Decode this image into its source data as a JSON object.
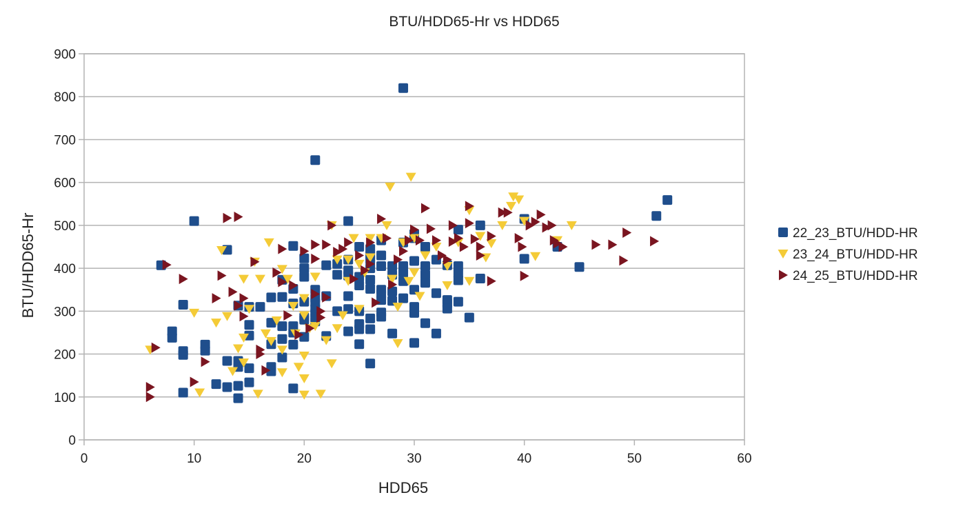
{
  "chart_data": {
    "type": "scatter",
    "title": "BTU/HDD65-Hr vs HDD65",
    "xlabel": "HDD65",
    "ylabel": "BTU/HDD65-Hr",
    "xlim": [
      0,
      60
    ],
    "ylim": [
      0,
      900
    ],
    "x_ticks": [
      "0",
      "10",
      "20",
      "30",
      "40",
      "50",
      "60"
    ],
    "y_ticks": [
      "0",
      "100",
      "200",
      "300",
      "400",
      "500",
      "600",
      "700",
      "800",
      "900"
    ],
    "grid": "horizontal",
    "legend_position": "right",
    "series": [
      {
        "name": "22_23_BTU/HDD-HR",
        "marker": "square",
        "color": "#1f4e8c",
        "points": [
          [
            7,
            407
          ],
          [
            8,
            253
          ],
          [
            8,
            238
          ],
          [
            9,
            315
          ],
          [
            9,
            207
          ],
          [
            9,
            198
          ],
          [
            9,
            110
          ],
          [
            10,
            510
          ],
          [
            11,
            222
          ],
          [
            11,
            208
          ],
          [
            12,
            130
          ],
          [
            13,
            443
          ],
          [
            13,
            184
          ],
          [
            13,
            123
          ],
          [
            14,
            313
          ],
          [
            14,
            184
          ],
          [
            14,
            170
          ],
          [
            14,
            126
          ],
          [
            14,
            97
          ],
          [
            15,
            310
          ],
          [
            15,
            268
          ],
          [
            15,
            243
          ],
          [
            15,
            167
          ],
          [
            15,
            134
          ],
          [
            16,
            310
          ],
          [
            17,
            332
          ],
          [
            17,
            273
          ],
          [
            17,
            223
          ],
          [
            17,
            170
          ],
          [
            17,
            160
          ],
          [
            18,
            373
          ],
          [
            18,
            333
          ],
          [
            18,
            265
          ],
          [
            18,
            235
          ],
          [
            18,
            192
          ],
          [
            19,
            452
          ],
          [
            19,
            352
          ],
          [
            19,
            318
          ],
          [
            19,
            265
          ],
          [
            19,
            250
          ],
          [
            19,
            222
          ],
          [
            19,
            120
          ],
          [
            20,
            423
          ],
          [
            20,
            400
          ],
          [
            20,
            380
          ],
          [
            20,
            322
          ],
          [
            20,
            285
          ],
          [
            20,
            280
          ],
          [
            20,
            240
          ],
          [
            21,
            652
          ],
          [
            21,
            350
          ],
          [
            21,
            330
          ],
          [
            21,
            320
          ],
          [
            21,
            306
          ],
          [
            21,
            295
          ],
          [
            21,
            285
          ],
          [
            21,
            276
          ],
          [
            22,
            407
          ],
          [
            22,
            335
          ],
          [
            22,
            242
          ],
          [
            23,
            410
          ],
          [
            23,
            385
          ],
          [
            23,
            300
          ],
          [
            24,
            510
          ],
          [
            24,
            420
          ],
          [
            24,
            395
          ],
          [
            24,
            383
          ],
          [
            24,
            335
          ],
          [
            24,
            305
          ],
          [
            24,
            253
          ],
          [
            25,
            450
          ],
          [
            25,
            380
          ],
          [
            25,
            360
          ],
          [
            25,
            300
          ],
          [
            25,
            270
          ],
          [
            25,
            258
          ],
          [
            25,
            223
          ],
          [
            26,
            445
          ],
          [
            26,
            430
          ],
          [
            26,
            420
          ],
          [
            26,
            400
          ],
          [
            26,
            373
          ],
          [
            26,
            352
          ],
          [
            26,
            283
          ],
          [
            26,
            258
          ],
          [
            26,
            178
          ],
          [
            27,
            465
          ],
          [
            27,
            430
          ],
          [
            27,
            405
          ],
          [
            27,
            350
          ],
          [
            27,
            340
          ],
          [
            27,
            326
          ],
          [
            27,
            297
          ],
          [
            27,
            287
          ],
          [
            28,
            405
          ],
          [
            28,
            385
          ],
          [
            28,
            346
          ],
          [
            28,
            324
          ],
          [
            28,
            248
          ],
          [
            29,
            820
          ],
          [
            29,
            460
          ],
          [
            29,
            405
          ],
          [
            29,
            390
          ],
          [
            29,
            370
          ],
          [
            29,
            330
          ],
          [
            30,
            480
          ],
          [
            30,
            470
          ],
          [
            30,
            417
          ],
          [
            30,
            350
          ],
          [
            30,
            310
          ],
          [
            30,
            296
          ],
          [
            30,
            226
          ],
          [
            31,
            450
          ],
          [
            31,
            405
          ],
          [
            31,
            385
          ],
          [
            31,
            366
          ],
          [
            31,
            272
          ],
          [
            32,
            420
          ],
          [
            32,
            342
          ],
          [
            32,
            248
          ],
          [
            33,
            407
          ],
          [
            33,
            326
          ],
          [
            33,
            318
          ],
          [
            33,
            306
          ],
          [
            34,
            490
          ],
          [
            34,
            405
          ],
          [
            34,
            388
          ],
          [
            34,
            372
          ],
          [
            34,
            322
          ],
          [
            35,
            285
          ],
          [
            36,
            500
          ],
          [
            36,
            376
          ],
          [
            40,
            515
          ],
          [
            40,
            422
          ],
          [
            43,
            450
          ],
          [
            45,
            403
          ],
          [
            52,
            522
          ],
          [
            53,
            559
          ]
        ]
      },
      {
        "name": "23_24_BTU/HDD-HR",
        "marker": "triangle-down",
        "color": "#f4cb37",
        "points": [
          [
            6,
            210
          ],
          [
            10,
            296
          ],
          [
            10.5,
            110
          ],
          [
            12,
            273
          ],
          [
            12.5,
            442
          ],
          [
            13,
            288
          ],
          [
            13.5,
            160
          ],
          [
            14,
            213
          ],
          [
            14.5,
            375
          ],
          [
            14.5,
            238
          ],
          [
            14.5,
            180
          ],
          [
            15,
            305
          ],
          [
            15.5,
            415
          ],
          [
            15.8,
            107
          ],
          [
            16,
            375
          ],
          [
            16.5,
            248
          ],
          [
            16.8,
            460
          ],
          [
            17,
            230
          ],
          [
            17.5,
            278
          ],
          [
            18,
            398
          ],
          [
            18,
            210
          ],
          [
            18,
            157
          ],
          [
            18.5,
            375
          ],
          [
            19,
            312
          ],
          [
            19.2,
            248
          ],
          [
            19.5,
            170
          ],
          [
            20,
            330
          ],
          [
            20,
            290
          ],
          [
            20,
            196
          ],
          [
            20,
            143
          ],
          [
            20,
            105
          ],
          [
            20.5,
            260
          ],
          [
            21,
            265
          ],
          [
            21,
            380
          ],
          [
            21.5,
            107
          ],
          [
            22,
            232
          ],
          [
            22.5,
            178
          ],
          [
            22.5,
            500
          ],
          [
            23,
            420
          ],
          [
            23,
            260
          ],
          [
            23.5,
            290
          ],
          [
            24,
            420
          ],
          [
            24,
            370
          ],
          [
            24.5,
            470
          ],
          [
            25,
            410
          ],
          [
            25,
            305
          ],
          [
            25.5,
            390
          ],
          [
            26,
            470
          ],
          [
            26,
            425
          ],
          [
            27,
            470
          ],
          [
            27.5,
            500
          ],
          [
            27.8,
            590
          ],
          [
            28,
            375
          ],
          [
            28.5,
            310
          ],
          [
            28.5,
            225
          ],
          [
            29,
            460
          ],
          [
            29.5,
            370
          ],
          [
            29.7,
            613
          ],
          [
            30,
            470
          ],
          [
            30,
            390
          ],
          [
            30.5,
            335
          ],
          [
            31,
            430
          ],
          [
            32,
            450
          ],
          [
            33,
            405
          ],
          [
            33,
            360
          ],
          [
            34,
            460
          ],
          [
            35,
            535
          ],
          [
            35,
            370
          ],
          [
            36,
            475
          ],
          [
            36.5,
            425
          ],
          [
            37,
            458
          ],
          [
            38,
            500
          ],
          [
            38.8,
            545
          ],
          [
            39,
            567
          ],
          [
            39.5,
            560
          ],
          [
            40,
            510
          ],
          [
            41,
            428
          ],
          [
            43,
            465
          ],
          [
            44.3,
            500
          ]
        ]
      },
      {
        "name": "24_25_BTU/HDD-HR",
        "marker": "triangle-right",
        "color": "#7a1520",
        "points": [
          [
            6,
            123
          ],
          [
            6,
            100
          ],
          [
            6.5,
            215
          ],
          [
            7.5,
            408
          ],
          [
            9,
            375
          ],
          [
            10,
            135
          ],
          [
            11,
            182
          ],
          [
            12,
            330
          ],
          [
            12.5,
            383
          ],
          [
            13,
            517
          ],
          [
            13.5,
            345
          ],
          [
            14,
            313
          ],
          [
            14,
            520
          ],
          [
            14.5,
            330
          ],
          [
            14.5,
            288
          ],
          [
            15.5,
            415
          ],
          [
            16,
            210
          ],
          [
            16,
            200
          ],
          [
            16.5,
            162
          ],
          [
            17.5,
            390
          ],
          [
            18,
            445
          ],
          [
            18,
            368
          ],
          [
            18.5,
            290
          ],
          [
            19,
            360
          ],
          [
            19.5,
            245
          ],
          [
            20,
            440
          ],
          [
            20.5,
            260
          ],
          [
            21,
            455
          ],
          [
            21,
            422
          ],
          [
            21,
            340
          ],
          [
            21.5,
            300
          ],
          [
            21.5,
            285
          ],
          [
            22,
            455
          ],
          [
            22,
            332
          ],
          [
            22.5,
            500
          ],
          [
            23,
            438
          ],
          [
            23.5,
            445
          ],
          [
            24,
            460
          ],
          [
            24.5,
            375
          ],
          [
            25,
            430
          ],
          [
            25.5,
            395
          ],
          [
            26,
            460
          ],
          [
            26,
            410
          ],
          [
            26.5,
            320
          ],
          [
            27,
            515
          ],
          [
            27.5,
            470
          ],
          [
            28,
            362
          ],
          [
            28.5,
            420
          ],
          [
            29,
            440
          ],
          [
            29.5,
            465
          ],
          [
            30,
            490
          ],
          [
            30.5,
            465
          ],
          [
            31,
            540
          ],
          [
            31.5,
            492
          ],
          [
            32,
            465
          ],
          [
            32.5,
            430
          ],
          [
            33,
            420
          ],
          [
            33.5,
            500
          ],
          [
            33.5,
            462
          ],
          [
            34,
            470
          ],
          [
            34.5,
            450
          ],
          [
            35,
            545
          ],
          [
            35,
            505
          ],
          [
            35.5,
            468
          ],
          [
            36,
            450
          ],
          [
            36,
            430
          ],
          [
            37,
            475
          ],
          [
            37,
            370
          ],
          [
            38,
            530
          ],
          [
            38.5,
            530
          ],
          [
            39.5,
            470
          ],
          [
            39.8,
            450
          ],
          [
            40,
            382
          ],
          [
            40.5,
            500
          ],
          [
            41,
            508
          ],
          [
            41.5,
            525
          ],
          [
            42,
            495
          ],
          [
            42.5,
            500
          ],
          [
            42.7,
            465
          ],
          [
            43,
            458
          ],
          [
            43.5,
            450
          ],
          [
            46.5,
            455
          ],
          [
            48,
            455
          ],
          [
            49,
            418
          ],
          [
            49.3,
            483
          ],
          [
            51.8,
            463
          ]
        ]
      }
    ]
  }
}
